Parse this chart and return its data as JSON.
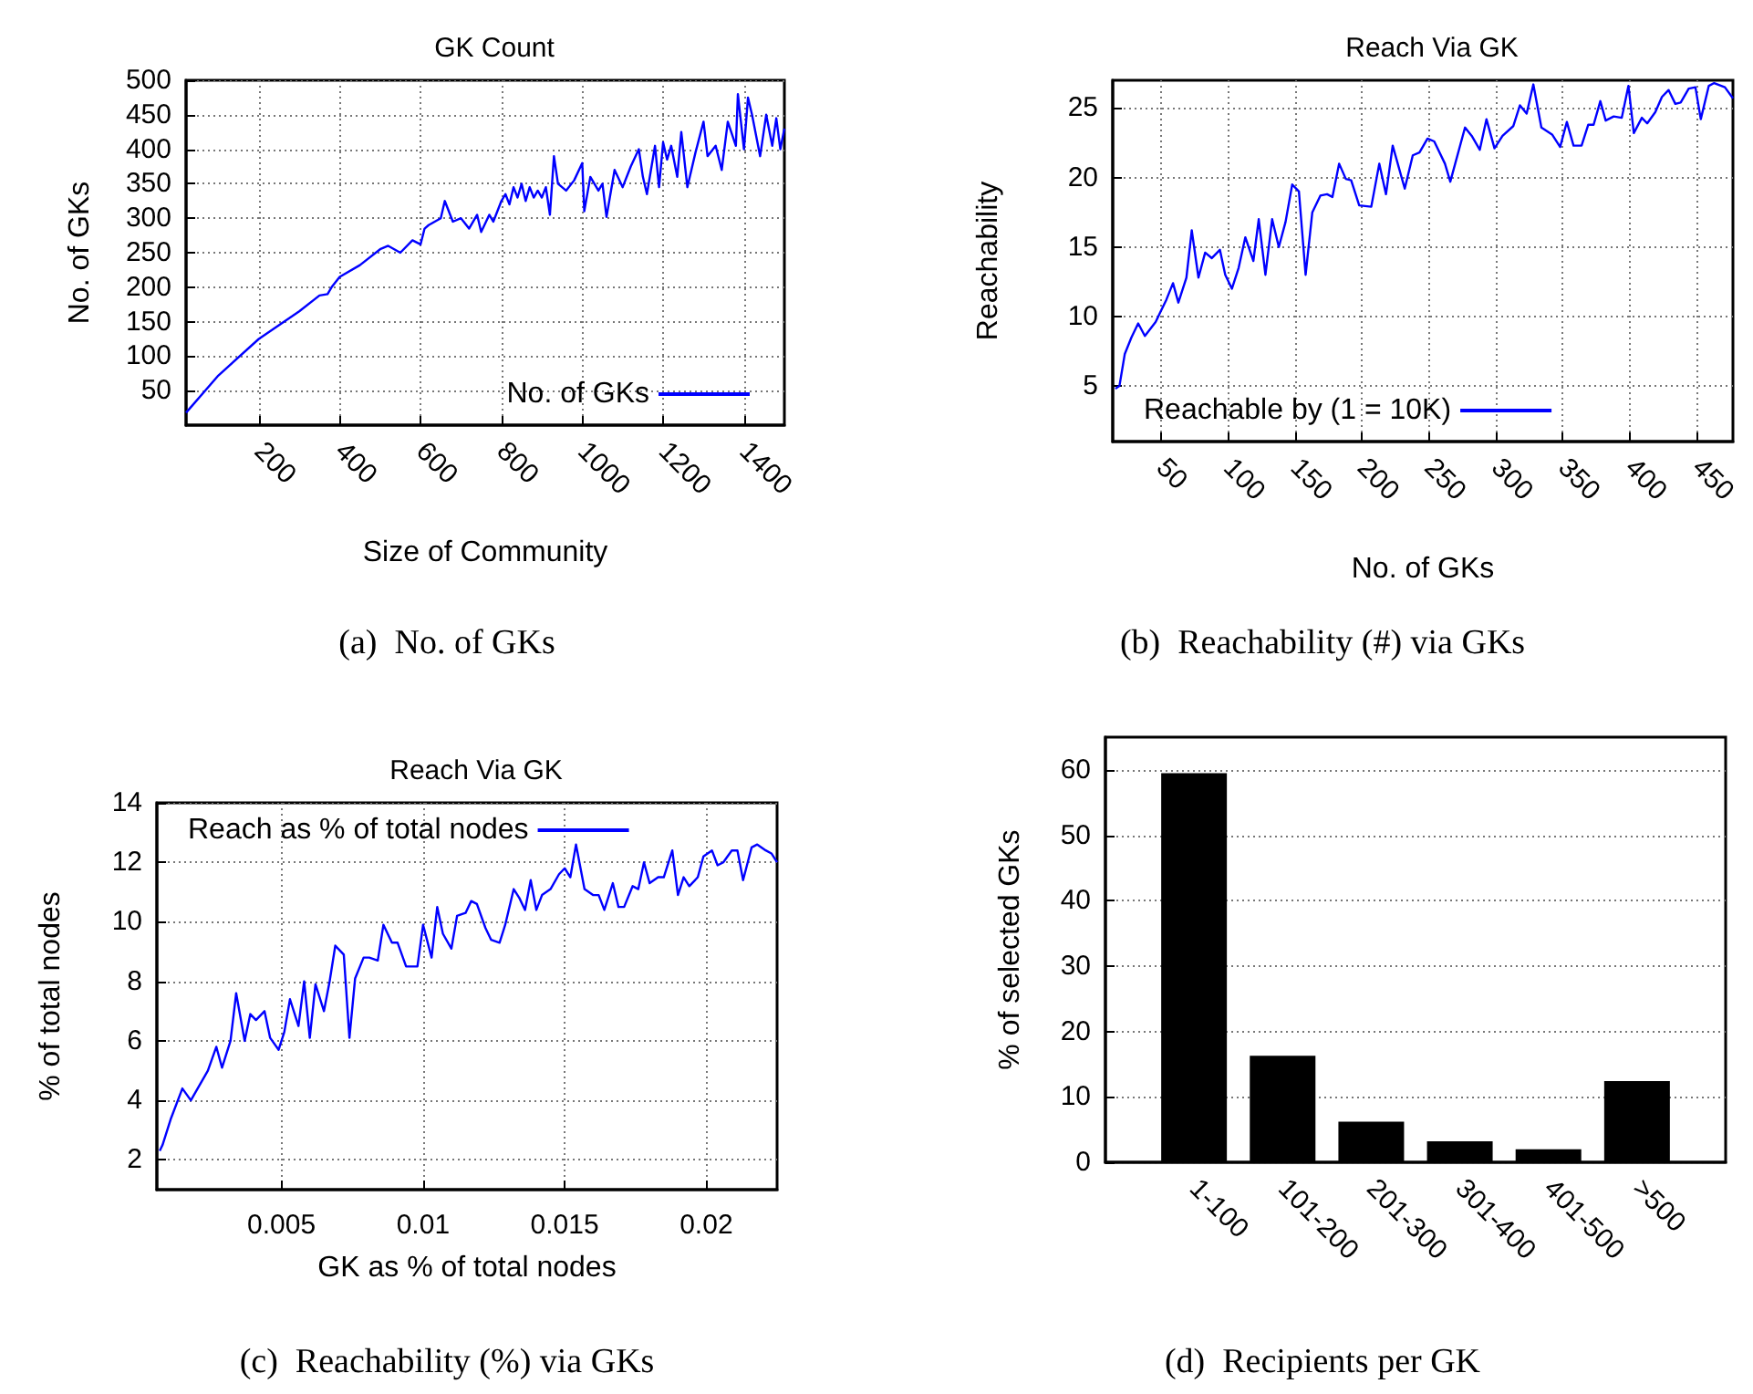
{
  "chart_data": [
    {
      "type": "line",
      "title": "GK Count",
      "xlabel": "Size of Community",
      "ylabel": "No. of GKs",
      "annotations": [
        "(a)  No. of GKs"
      ],
      "xlim": [
        20,
        1500
      ],
      "xticks": [
        200,
        400,
        600,
        800,
        1000,
        1200,
        1400
      ],
      "ylim": [
        0,
        500
      ],
      "yticks": [
        50,
        100,
        150,
        200,
        250,
        300,
        350,
        400,
        450,
        500
      ],
      "grid": true,
      "legend": "bottom right",
      "series": [
        {
          "name": "No. of GKs",
          "color": "#0000ff",
          "x": [
            20,
            100,
            200,
            300,
            350,
            370,
            380,
            400,
            450,
            500,
            520,
            550,
            580,
            600,
            610,
            620,
            650,
            660,
            680,
            700,
            720,
            740,
            750,
            770,
            780,
            800,
            810,
            820,
            830,
            840,
            850,
            860,
            870,
            880,
            890,
            900,
            910,
            920,
            930,
            940,
            960,
            980,
            1000,
            1005,
            1020,
            1040,
            1050,
            1060,
            1080,
            1100,
            1120,
            1140,
            1150,
            1160,
            1180,
            1190,
            1200,
            1210,
            1220,
            1235,
            1245,
            1260,
            1280,
            1300,
            1310,
            1330,
            1345,
            1360,
            1380,
            1385,
            1400,
            1410,
            1420,
            1440,
            1455,
            1470,
            1480,
            1490,
            1500
          ],
          "values": [
            18,
            72,
            125,
            165,
            188,
            190,
            200,
            215,
            232,
            255,
            260,
            250,
            268,
            262,
            285,
            290,
            300,
            325,
            295,
            300,
            285,
            305,
            280,
            305,
            295,
            325,
            335,
            320,
            345,
            330,
            350,
            325,
            345,
            330,
            340,
            330,
            345,
            305,
            390,
            350,
            340,
            355,
            380,
            310,
            360,
            340,
            350,
            302,
            370,
            345,
            375,
            400,
            360,
            335,
            405,
            345,
            410,
            385,
            405,
            360,
            425,
            345,
            395,
            440,
            390,
            405,
            370,
            440,
            405,
            480,
            400,
            475,
            450,
            390,
            450,
            405,
            445,
            400,
            430
          ]
        }
      ]
    },
    {
      "type": "line",
      "title": "Reach Via GK",
      "xlabel": "No. of GKs",
      "ylabel": "Reachability",
      "annotations": [
        "(b)  Reachability (#) via GKs"
      ],
      "xlim": [
        14,
        477
      ],
      "xticks": [
        50,
        100,
        150,
        200,
        250,
        300,
        350,
        400,
        450
      ],
      "ylim": [
        1,
        27
      ],
      "yticks": [
        5,
        10,
        15,
        20,
        25
      ],
      "grid": true,
      "legend": "bottom",
      "series": [
        {
          "name": "Reachable by (1 = 10K)",
          "color": "#0000ff",
          "x": [
            16,
            19,
            23,
            28,
            33,
            38,
            46,
            50,
            54,
            59,
            63,
            69,
            73,
            78,
            83,
            88,
            94,
            98,
            103,
            108,
            113,
            119,
            123,
            128,
            133,
            138,
            143,
            148,
            153,
            158,
            163,
            169,
            174,
            178,
            183,
            188,
            192,
            198,
            207,
            213,
            218,
            223,
            232,
            238,
            243,
            249,
            254,
            262,
            266,
            277,
            282,
            288,
            293,
            299,
            305,
            313,
            318,
            323,
            328,
            334,
            342,
            348,
            353,
            358,
            364,
            369,
            373,
            378,
            382,
            388,
            394,
            399,
            403,
            409,
            413,
            419,
            424,
            429,
            434,
            438,
            444,
            449,
            453,
            459,
            463,
            471,
            477
          ],
          "values": [
            4.8,
            5,
            7.3,
            8.5,
            9.5,
            8.6,
            9.6,
            10.4,
            11.2,
            12.4,
            11,
            12.8,
            16.2,
            12.8,
            14.6,
            14.2,
            14.8,
            13,
            12,
            13.5,
            15.7,
            14,
            17,
            13,
            17,
            15,
            16.8,
            19.5,
            19,
            13,
            17.5,
            18.7,
            18.8,
            18.6,
            21,
            19.9,
            19.8,
            18,
            17.9,
            21,
            18.8,
            22.3,
            19.2,
            21.6,
            21.8,
            22.8,
            22.6,
            21,
            19.7,
            23.6,
            23,
            22,
            24.2,
            22.1,
            23,
            23.7,
            25.2,
            24.6,
            26.7,
            23.6,
            23.1,
            22.2,
            24,
            22.3,
            22.3,
            23.8,
            23.8,
            25.5,
            24.1,
            24.4,
            24.3,
            26.6,
            23.2,
            24.3,
            23.9,
            24.7,
            25.8,
            26.3,
            25.3,
            25.4,
            26.4,
            26.5,
            24.2,
            26.6,
            26.8,
            26.5,
            25.7
          ]
        }
      ]
    },
    {
      "type": "line",
      "title": "Reach Via GK",
      "xlabel": "GK as % of total nodes",
      "ylabel": "% of total nodes",
      "annotations": [
        "(c)  Reachability (%) via GKs"
      ],
      "xlim": [
        0.0006,
        0.0225
      ],
      "xticks": [
        0.005,
        0.01,
        0.015,
        0.02
      ],
      "ylim": [
        1,
        14
      ],
      "yticks": [
        2,
        4,
        6,
        8,
        10,
        12,
        14
      ],
      "grid": true,
      "legend": "top",
      "series": [
        {
          "name": "Reach as % of total nodes",
          "color": "#0000ff",
          "x": [
            0.0007,
            0.0008,
            0.0011,
            0.0015,
            0.0018,
            0.0024,
            0.0027,
            0.0029,
            0.0032,
            0.0034,
            0.0037,
            0.0039,
            0.0041,
            0.0044,
            0.0046,
            0.0049,
            0.0051,
            0.0053,
            0.0056,
            0.0058,
            0.006,
            0.0062,
            0.0065,
            0.0067,
            0.0069,
            0.0072,
            0.0074,
            0.0076,
            0.0079,
            0.0081,
            0.0084,
            0.0086,
            0.0089,
            0.0091,
            0.0094,
            0.0098,
            0.01,
            0.0103,
            0.0105,
            0.0107,
            0.011,
            0.0112,
            0.0115,
            0.0117,
            0.0119,
            0.0122,
            0.0124,
            0.0127,
            0.0129,
            0.0132,
            0.0134,
            0.0136,
            0.0138,
            0.014,
            0.0142,
            0.0145,
            0.0148,
            0.015,
            0.0152,
            0.0154,
            0.0157,
            0.016,
            0.0162,
            0.0164,
            0.0167,
            0.0169,
            0.0171,
            0.0174,
            0.0176,
            0.0178,
            0.018,
            0.0183,
            0.0185,
            0.0188,
            0.019,
            0.0192,
            0.0194,
            0.0197,
            0.0199,
            0.0202,
            0.0204,
            0.0206,
            0.0209,
            0.0211,
            0.0213,
            0.0216,
            0.0218,
            0.0221,
            0.0223,
            0.0225
          ],
          "values": [
            2.3,
            2.5,
            3.4,
            4.4,
            4,
            5,
            5.8,
            5.1,
            6,
            7.6,
            6,
            6.9,
            6.7,
            7,
            6.1,
            5.7,
            6.3,
            7.4,
            6.5,
            8,
            6.1,
            7.9,
            7,
            8,
            9.2,
            8.9,
            6.1,
            8.1,
            8.8,
            8.8,
            8.7,
            9.9,
            9.3,
            9.3,
            8.5,
            8.5,
            9.9,
            8.8,
            10.5,
            9.6,
            9.1,
            10.2,
            10.3,
            10.7,
            10.6,
            9.8,
            9.4,
            9.3,
            9.9,
            11.1,
            10.8,
            10.4,
            11.4,
            10.4,
            10.9,
            11.1,
            11.6,
            11.8,
            11.5,
            12.6,
            11.1,
            10.9,
            10.9,
            10.4,
            11.3,
            10.5,
            10.5,
            11.2,
            11.1,
            12,
            11.3,
            11.5,
            11.5,
            12.4,
            10.9,
            11.5,
            11.2,
            11.5,
            12.2,
            12.4,
            11.9,
            12,
            12.4,
            12.4,
            11.4,
            12.5,
            12.6,
            12.4,
            12.3,
            12
          ]
        }
      ]
    },
    {
      "type": "bar",
      "ylabel": "% of selected GKs",
      "annotations": [
        "(d)  Recipients per GK"
      ],
      "categories": [
        null,
        "1-100",
        "101-200",
        "201-300",
        "301-400",
        "401-500",
        ">500",
        null
      ],
      "ylim": [
        0,
        65
      ],
      "yticks": [
        0,
        10,
        20,
        30,
        40,
        50,
        60
      ],
      "grid": "y",
      "series": [
        {
          "color": "#000000",
          "values": [
            null,
            59.5,
            16.3,
            6.2,
            3.2,
            2,
            12.4,
            null
          ]
        }
      ]
    }
  ]
}
